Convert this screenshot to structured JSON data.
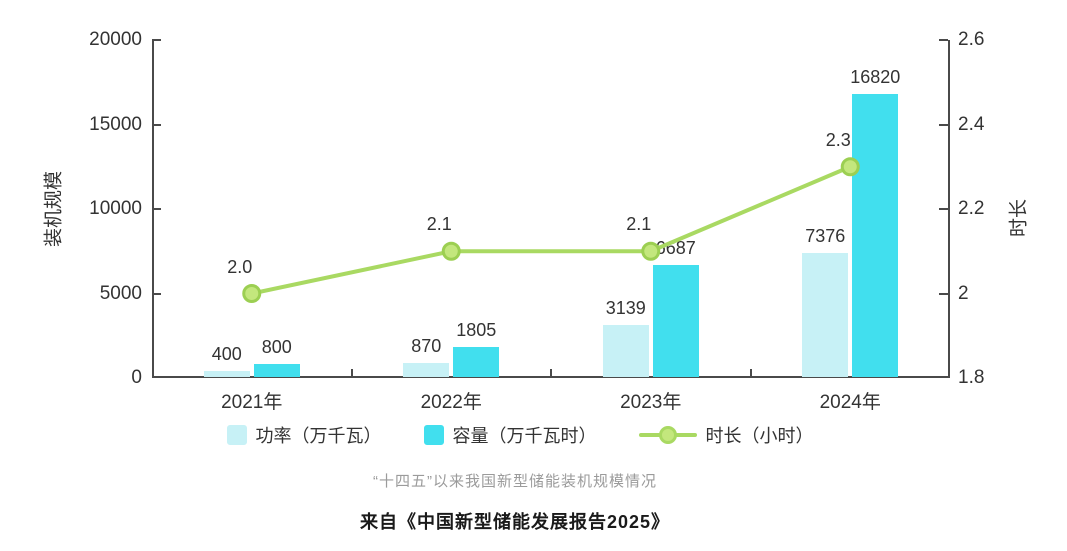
{
  "figure": {
    "caption": "“十四五”以来我国新型储能装机规模情况",
    "source": "来自《中国新型储能发展报告2025》"
  },
  "chart_data": {
    "type": "bar",
    "subtype": "grouped-bar-plus-line-dual-axis",
    "title": "“十四五”以来我国新型储能装机规模情况",
    "categories": [
      "2021年",
      "2022年",
      "2023年",
      "2024年"
    ],
    "series": [
      {
        "name": "功率（万千瓦）",
        "type": "bar",
        "axis": "left",
        "color": "#c7f1f6",
        "values": [
          400,
          870,
          3139,
          7376
        ],
        "labels": [
          "400",
          "870",
          "3139",
          "7376"
        ]
      },
      {
        "name": "容量（万千瓦时）",
        "type": "bar",
        "axis": "left",
        "color": "#41dfee",
        "values": [
          800,
          1805,
          6687,
          16820
        ],
        "labels": [
          "800",
          "1805",
          "6687",
          "16820"
        ]
      },
      {
        "name": "时长（小时）",
        "type": "line",
        "axis": "right",
        "color": "#a9d962",
        "marker_fill": "#c3e77d",
        "marker_stroke": "#9ccf52",
        "values": [
          2.0,
          2.1,
          2.1,
          2.3
        ],
        "labels": [
          "2.0",
          "2.1",
          "2.1",
          "2.3"
        ]
      }
    ],
    "left_axis": {
      "label": "装机规模",
      "min": 0,
      "max": 20000,
      "ticks": [
        "0",
        "5000",
        "10000",
        "15000",
        "20000"
      ]
    },
    "right_axis": {
      "label": "时长",
      "min": 1.8,
      "max": 2.6,
      "ticks": [
        "1.8",
        "2",
        "2.2",
        "2.4",
        "2.6"
      ]
    },
    "legend_position": "bottom",
    "grid": false,
    "text_color": "#333333",
    "axis_color": "#4a4a4a"
  }
}
